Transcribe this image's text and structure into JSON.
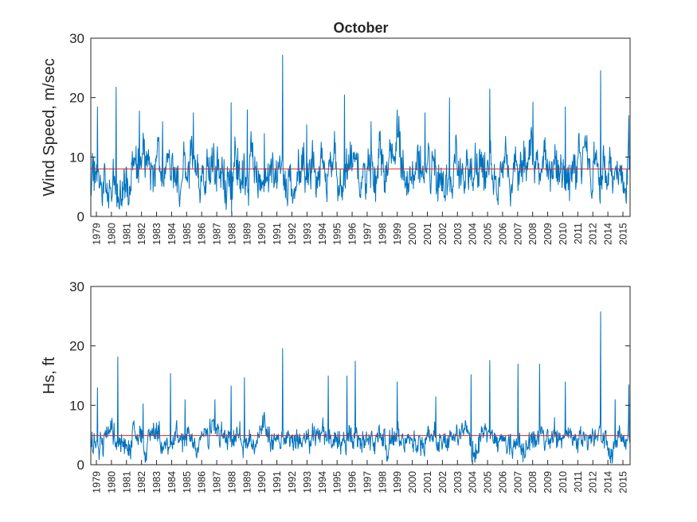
{
  "chart_data": [
    {
      "type": "line",
      "title": "October",
      "xlabel": "",
      "ylabel": "Wind Speed, m/sec",
      "ylim": [
        0,
        30
      ],
      "yticks": [
        "0",
        "10",
        "20",
        "30"
      ],
      "xticks": [
        "1979",
        "1980",
        "1981",
        "1982",
        "1983",
        "1984",
        "1985",
        "1986",
        "1987",
        "1988",
        "1989",
        "1990",
        "1991",
        "1992",
        "1993",
        "1994",
        "1995",
        "1996",
        "1997",
        "1998",
        "1999",
        "2000",
        "2001",
        "2002",
        "2003",
        "2004",
        "2005",
        "2006",
        "2007",
        "2008",
        "2009",
        "2010",
        "2011",
        "2012",
        "2014",
        "2015"
      ],
      "series_color": "#0072BD",
      "mean_line": {
        "value": 8.0,
        "color": "#D62728"
      },
      "grid": false,
      "base": 7.6,
      "amplitude": 3.6,
      "peaks": [
        {
          "x": 0.012,
          "value": 18.5
        },
        {
          "x": 0.047,
          "value": 21.8
        },
        {
          "x": 0.09,
          "value": 17.8
        },
        {
          "x": 0.133,
          "value": 16.0
        },
        {
          "x": 0.19,
          "value": 17.5
        },
        {
          "x": 0.26,
          "value": 19.2
        },
        {
          "x": 0.29,
          "value": 18.0
        },
        {
          "x": 0.322,
          "value": 14.0
        },
        {
          "x": 0.356,
          "value": 27.2
        },
        {
          "x": 0.4,
          "value": 15.5
        },
        {
          "x": 0.47,
          "value": 20.5
        },
        {
          "x": 0.52,
          "value": 16.0
        },
        {
          "x": 0.568,
          "value": 18.0
        },
        {
          "x": 0.62,
          "value": 17.5
        },
        {
          "x": 0.665,
          "value": 20.0
        },
        {
          "x": 0.74,
          "value": 21.5
        },
        {
          "x": 0.82,
          "value": 19.3
        },
        {
          "x": 0.88,
          "value": 18.5
        },
        {
          "x": 0.945,
          "value": 24.6
        },
        {
          "x": 0.998,
          "value": 17.0
        }
      ]
    },
    {
      "type": "line",
      "title": "",
      "xlabel": "",
      "ylabel": "Hs, ft",
      "ylim": [
        0,
        30
      ],
      "yticks": [
        "0",
        "10",
        "20",
        "30"
      ],
      "xticks": [
        "1979",
        "1980",
        "1981",
        "1982",
        "1983",
        "1984",
        "1985",
        "1986",
        "1987",
        "1988",
        "1989",
        "1990",
        "1991",
        "1992",
        "1993",
        "1994",
        "1995",
        "1996",
        "1997",
        "1998",
        "1999",
        "2000",
        "2001",
        "2002",
        "2003",
        "2004",
        "2005",
        "2006",
        "2007",
        "2008",
        "2009",
        "2010",
        "2011",
        "2012",
        "2014",
        "2015"
      ],
      "series_color": "#0072BD",
      "mean_line": {
        "value": 4.9,
        "color": "#D62728"
      },
      "grid": false,
      "base": 4.4,
      "amplitude": 1.9,
      "peaks": [
        {
          "x": 0.012,
          "value": 13.0
        },
        {
          "x": 0.05,
          "value": 18.2
        },
        {
          "x": 0.097,
          "value": 10.3
        },
        {
          "x": 0.148,
          "value": 15.4
        },
        {
          "x": 0.175,
          "value": 11.0
        },
        {
          "x": 0.23,
          "value": 11.0
        },
        {
          "x": 0.26,
          "value": 13.3
        },
        {
          "x": 0.285,
          "value": 14.7
        },
        {
          "x": 0.356,
          "value": 19.6
        },
        {
          "x": 0.44,
          "value": 15.0
        },
        {
          "x": 0.475,
          "value": 15.0
        },
        {
          "x": 0.49,
          "value": 17.5
        },
        {
          "x": 0.568,
          "value": 14.0
        },
        {
          "x": 0.64,
          "value": 11.5
        },
        {
          "x": 0.705,
          "value": 15.2
        },
        {
          "x": 0.74,
          "value": 17.6
        },
        {
          "x": 0.792,
          "value": 17.0
        },
        {
          "x": 0.832,
          "value": 17.0
        },
        {
          "x": 0.88,
          "value": 14.0
        },
        {
          "x": 0.945,
          "value": 25.8
        },
        {
          "x": 0.972,
          "value": 11.0
        },
        {
          "x": 0.998,
          "value": 13.5
        }
      ]
    }
  ]
}
